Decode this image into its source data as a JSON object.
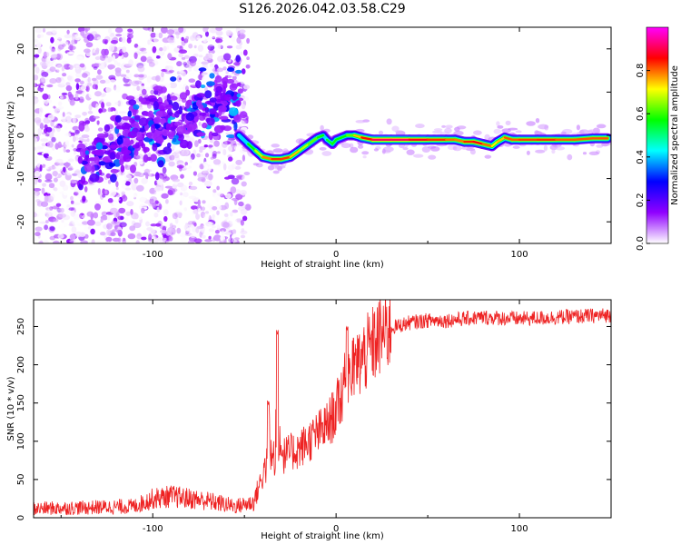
{
  "title": "S126.2026.042.03.58.C29",
  "chart_data": [
    {
      "type": "heatmap",
      "title": "S126.2026.042.03.58.C29",
      "xlabel": "Height of straight line (km)",
      "ylabel": "Frequency (Hz)",
      "xlim": [
        -165,
        150
      ],
      "ylim": [
        -25,
        25
      ],
      "xticks": [
        -100,
        0,
        100
      ],
      "yticks": [
        -20,
        -10,
        0,
        10,
        20
      ],
      "colorbar": {
        "label": "Normalized spectral amplitude",
        "range": [
          0,
          1
        ],
        "ticks": [
          "0.0",
          "0.2",
          "0.4",
          "0.6",
          "0.8"
        ],
        "colormap": [
          "#ffffff",
          "#9000ff",
          "#0000ff",
          "#00ffff",
          "#00ff00",
          "#ffff00",
          "#ff0000",
          "#ff00ff"
        ]
      },
      "ridge": {
        "x": [
          -53,
          -48,
          -44,
          -40,
          -35,
          -30,
          -25,
          -20,
          -15,
          -10,
          -7,
          -5,
          -2,
          0,
          3,
          6,
          10,
          14,
          20,
          30,
          40,
          50,
          60,
          65,
          70,
          75,
          80,
          85,
          88,
          92,
          96,
          100,
          110,
          120,
          130,
          140,
          148
        ],
        "y": [
          0,
          -2,
          -3.5,
          -5,
          -5.5,
          -5.5,
          -5,
          -3.5,
          -2,
          -0.5,
          0,
          -1,
          -2,
          -1,
          -0.5,
          0,
          0,
          -0.5,
          -1,
          -1,
          -1,
          -1,
          -1,
          -1,
          -1.5,
          -1.5,
          -2,
          -2.5,
          -1.5,
          -0.5,
          -1,
          -1,
          -1,
          -1,
          -1,
          -0.7,
          -0.7
        ],
        "amplitude": [
          0.5,
          0.55,
          0.6,
          0.75,
          0.82,
          0.85,
          0.8,
          0.7,
          0.65,
          0.6,
          0.55,
          0.5,
          0.6,
          0.55,
          0.6,
          0.55,
          0.7,
          0.8,
          0.9,
          0.92,
          0.9,
          0.85,
          0.82,
          0.78,
          0.8,
          0.88,
          0.85,
          0.75,
          0.7,
          0.8,
          0.82,
          0.8,
          0.85,
          0.82,
          0.8,
          0.82,
          0.8
        ]
      }
    },
    {
      "type": "line",
      "xlabel": "Height of straight line (km)",
      "ylabel": "SNR (10 * v/v)",
      "xlim": [
        -165,
        150
      ],
      "ylim": [
        0,
        285
      ],
      "xticks": [
        -100,
        0,
        100
      ],
      "yticks": [
        0,
        50,
        100,
        150,
        200,
        250
      ],
      "color": "#ee2222",
      "envelope": {
        "x": [
          -165,
          -140,
          -110,
          -100,
          -90,
          -70,
          -55,
          -45,
          -40,
          -35,
          -30,
          -25,
          -20,
          -15,
          -10,
          -5,
          0,
          5,
          10,
          15,
          20,
          25,
          30,
          40,
          50,
          60,
          80,
          100,
          120,
          150
        ],
        "y": [
          12,
          13,
          15,
          25,
          28,
          22,
          15,
          20,
          55,
          75,
          80,
          85,
          90,
          100,
          110,
          120,
          140,
          175,
          195,
          210,
          225,
          240,
          248,
          255,
          258,
          258,
          262,
          260,
          262,
          265
        ]
      },
      "spikes": [
        {
          "x": -32,
          "y": 248
        },
        {
          "x": 6,
          "y": 250
        },
        {
          "x": -37,
          "y": 155
        }
      ]
    }
  ]
}
